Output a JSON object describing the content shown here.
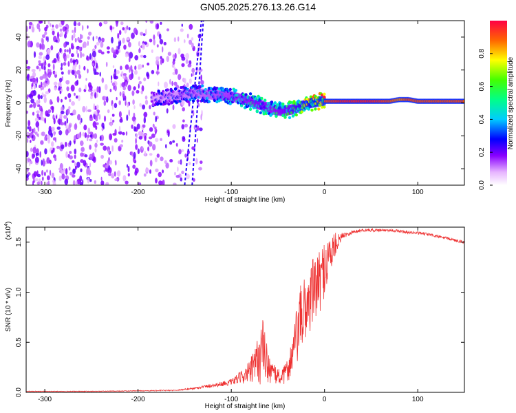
{
  "page_title": "GN05.2025.276.13.26.G14",
  "chart_data": [
    {
      "type": "heatmap",
      "title": "GN05.2025.276.13.26.G14",
      "xlabel": "Height of straight line (km)",
      "ylabel": "Frequency (Hz)",
      "xlim": [
        -320,
        150
      ],
      "ylim": [
        -50,
        50
      ],
      "x_ticks": [
        -300,
        -200,
        -100,
        0,
        100
      ],
      "x_tick_labels": [
        "-300",
        "-200",
        "-100",
        "0",
        "100"
      ],
      "y_ticks": [
        -40,
        -20,
        0,
        20,
        40
      ],
      "y_tick_labels": [
        "-40",
        "-20",
        "0",
        "20",
        "40"
      ],
      "colorbar": {
        "label": "Normalized spectral amplitude",
        "range": [
          0,
          1
        ],
        "ticks": [
          0.0,
          0.2,
          0.4,
          0.6,
          0.8
        ],
        "tick_labels": [
          "0.0",
          "0.2",
          "0.4",
          "0.6",
          "0.8"
        ]
      },
      "ridge": {
        "x": [
          -185,
          -160,
          -140,
          -120,
          -100,
          -80,
          -65,
          -55,
          -45,
          -35,
          -25,
          -15,
          -5,
          0,
          20,
          50,
          70,
          80,
          90,
          100,
          120,
          150
        ],
        "y": [
          3,
          4,
          6,
          5,
          4,
          1,
          -2,
          -4,
          -5,
          -4,
          -2,
          0,
          1,
          1,
          1,
          1,
          1,
          2,
          2,
          1,
          1,
          1
        ],
        "amplitude": [
          0.25,
          0.3,
          0.35,
          0.4,
          0.45,
          0.5,
          0.55,
          0.5,
          0.55,
          0.6,
          0.7,
          0.8,
          0.85,
          0.9,
          0.95,
          0.95,
          0.9,
          0.85,
          0.9,
          0.9,
          0.9,
          0.9
        ]
      },
      "noise_x_range": [
        -320,
        -130
      ]
    },
    {
      "type": "line",
      "xlabel": "Height of straight line (km)",
      "ylabel": "SNR (10 * v/v)",
      "y_multiplier": "(x10^4)",
      "y_multiplier_base": "(x10",
      "y_multiplier_exp": "4",
      "y_multiplier_close": ")",
      "xlim": [
        -320,
        150
      ],
      "ylim": [
        0,
        1.65
      ],
      "x_ticks": [
        -300,
        -200,
        -100,
        0,
        100
      ],
      "x_tick_labels": [
        "-300",
        "-200",
        "-100",
        "0",
        "100"
      ],
      "y_ticks": [
        0.0,
        0.5,
        1.0,
        1.5
      ],
      "y_tick_labels": [
        "0.0",
        "0.5",
        "1.0",
        "1.5"
      ],
      "color": "#ee3333",
      "series": [
        {
          "name": "SNR",
          "x": [
            -320,
            -250,
            -200,
            -160,
            -140,
            -120,
            -100,
            -90,
            -80,
            -75,
            -70,
            -66,
            -62,
            -55,
            -45,
            -40,
            -35,
            -30,
            -25,
            -20,
            -15,
            -10,
            -5,
            0,
            5,
            10,
            15,
            20,
            30,
            40,
            50,
            60,
            70,
            80,
            90,
            100,
            110,
            120,
            130,
            140,
            150
          ],
          "y": [
            0.01,
            0.01,
            0.015,
            0.02,
            0.04,
            0.07,
            0.1,
            0.15,
            0.2,
            0.25,
            0.35,
            0.45,
            0.3,
            0.18,
            0.15,
            0.22,
            0.35,
            0.55,
            0.75,
            0.85,
            0.95,
            1.05,
            1.1,
            1.25,
            1.35,
            1.45,
            1.52,
            1.57,
            1.6,
            1.62,
            1.62,
            1.62,
            1.62,
            1.61,
            1.6,
            1.59,
            1.58,
            1.56,
            1.54,
            1.52,
            1.5
          ],
          "noise_amplitude": [
            0.003,
            0.003,
            0.004,
            0.005,
            0.01,
            0.02,
            0.03,
            0.06,
            0.12,
            0.2,
            0.3,
            0.3,
            0.2,
            0.1,
            0.08,
            0.12,
            0.2,
            0.3,
            0.35,
            0.35,
            0.35,
            0.35,
            0.3,
            0.3,
            0.25,
            0.15,
            0.06,
            0.03,
            0.02,
            0.015,
            0.015,
            0.015,
            0.015,
            0.015,
            0.015,
            0.015,
            0.015,
            0.015,
            0.015,
            0.015,
            0.015
          ]
        }
      ]
    }
  ]
}
